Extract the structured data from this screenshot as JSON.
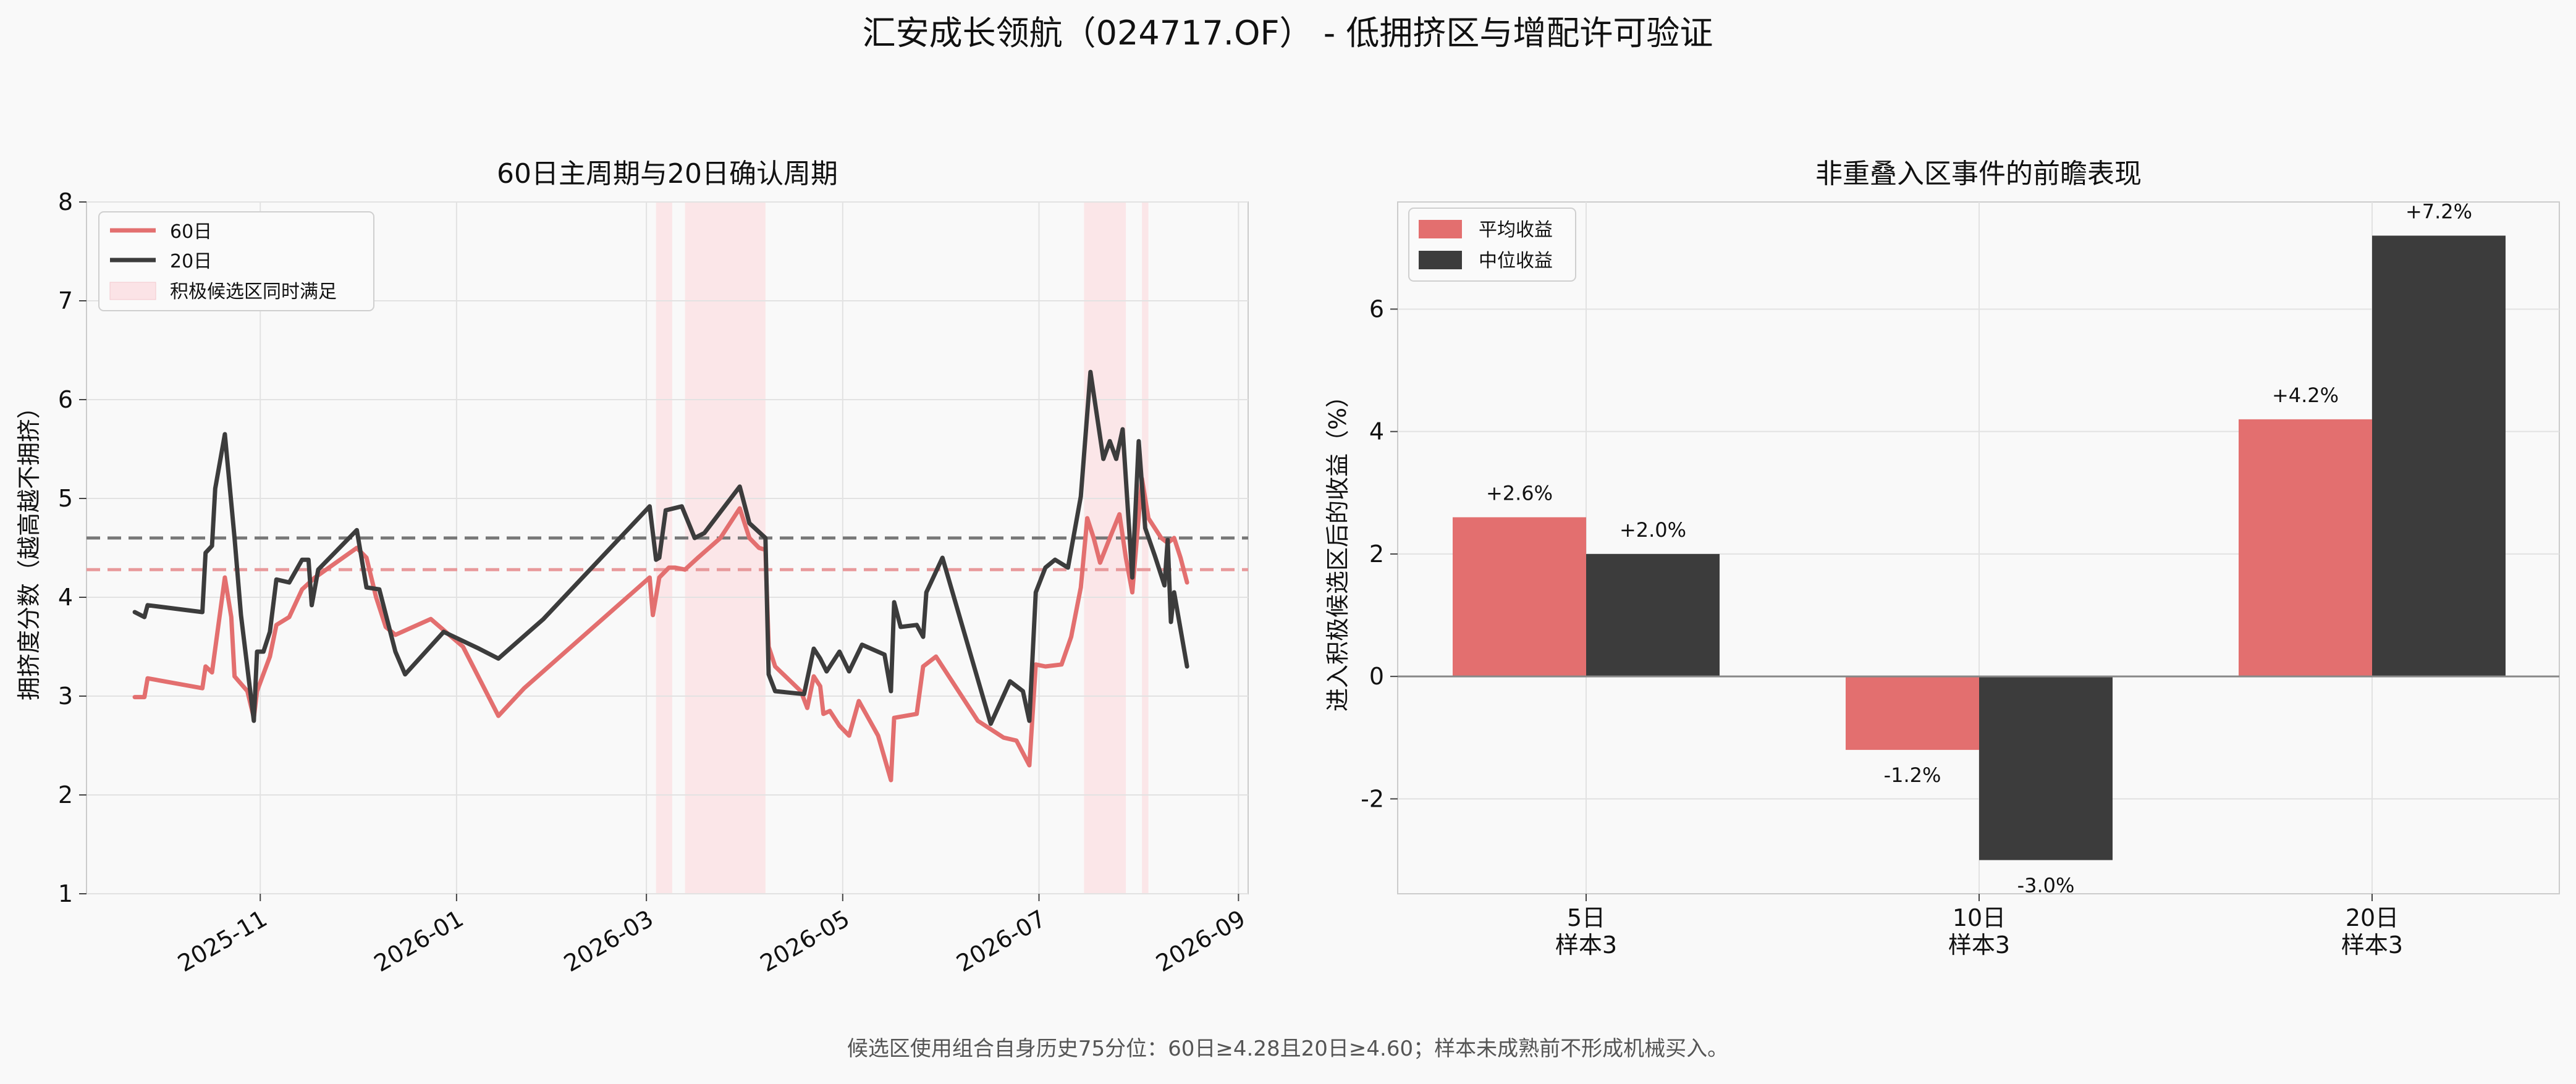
{
  "page": {
    "suptitle": "汇安成长领航（024717.OF） - 低拥挤区与增配许可验证",
    "footnote": "候选区使用组合自身历史75分位：60日≥4.28且20日≥4.60；样本未成熟前不形成机械买入。"
  },
  "colors": {
    "red": "#e36f6f",
    "dark": "#3c3c3c",
    "band": "#fbe3e6",
    "grid": "#e2e2e2",
    "axis": "#888888",
    "background": "#f9f9f9"
  },
  "chart_data": [
    {
      "type": "line",
      "title": "60日主周期与20日确认周期",
      "ylabel": "拥挤度分数（越高越不拥挤）",
      "xlabel": "",
      "x_is_date": true,
      "xlim": [
        "2025-09-08",
        "2026-09-04"
      ],
      "ylim": [
        1,
        8
      ],
      "yticks": [
        1,
        2,
        3,
        4,
        5,
        6,
        7,
        8
      ],
      "xticks": [
        "2025-11",
        "2026-01",
        "2026-03",
        "2026-05",
        "2026-07",
        "2026-09"
      ],
      "grid": true,
      "legend_position": "upper left",
      "legend": [
        "60日",
        "20日",
        "积极候选区同时满足"
      ],
      "thresholds": [
        {
          "series": "20日",
          "value": 4.6,
          "style": "dashed",
          "color": "#777777"
        },
        {
          "series": "60日",
          "value": 4.28,
          "style": "dashed",
          "color": "#e8999b"
        }
      ],
      "shaded_regions": [
        [
          "2026-03-04",
          "2026-03-09"
        ],
        [
          "2026-03-13",
          "2026-04-07"
        ],
        [
          "2026-07-15",
          "2026-07-28"
        ],
        [
          "2026-08-02",
          "2026-08-04"
        ]
      ],
      "series": [
        {
          "name": "60日",
          "color": "#e36f6f",
          "points": [
            [
              "2025-09-23",
              2.99
            ],
            [
              "2025-09-26",
              2.99
            ],
            [
              "2025-09-27",
              3.18
            ],
            [
              "2025-10-14",
              3.08
            ],
            [
              "2025-10-15",
              3.3
            ],
            [
              "2025-10-17",
              3.24
            ],
            [
              "2025-10-21",
              4.2
            ],
            [
              "2025-10-23",
              3.8
            ],
            [
              "2025-10-24",
              3.2
            ],
            [
              "2025-10-28",
              3.05
            ],
            [
              "2025-10-30",
              2.78
            ],
            [
              "2025-10-31",
              3.05
            ],
            [
              "2025-11-04",
              3.4
            ],
            [
              "2025-11-06",
              3.72
            ],
            [
              "2025-11-10",
              3.8
            ],
            [
              "2025-11-14",
              4.08
            ],
            [
              "2025-11-18",
              4.2
            ],
            [
              "2025-12-01",
              4.5
            ],
            [
              "2025-12-04",
              4.4
            ],
            [
              "2025-12-07",
              4.0
            ],
            [
              "2025-12-10",
              3.7
            ],
            [
              "2025-12-13",
              3.62
            ],
            [
              "2025-12-24",
              3.78
            ],
            [
              "2026-01-03",
              3.5
            ],
            [
              "2026-01-14",
              2.8
            ],
            [
              "2026-01-22",
              3.08
            ],
            [
              "2026-03-02",
              4.2
            ],
            [
              "2026-03-03",
              3.82
            ],
            [
              "2026-03-05",
              4.2
            ],
            [
              "2026-03-08",
              4.3
            ],
            [
              "2026-03-10",
              4.3
            ],
            [
              "2026-03-13",
              4.28
            ],
            [
              "2026-03-17",
              4.4
            ],
            [
              "2026-03-24",
              4.6
            ],
            [
              "2026-03-30",
              4.9
            ],
            [
              "2026-04-02",
              4.6
            ],
            [
              "2026-04-05",
              4.5
            ],
            [
              "2026-04-07",
              4.48
            ],
            [
              "2026-04-08",
              3.5
            ],
            [
              "2026-04-10",
              3.3
            ],
            [
              "2026-04-18",
              3.05
            ],
            [
              "2026-04-20",
              2.88
            ],
            [
              "2026-04-22",
              3.2
            ],
            [
              "2026-04-24",
              3.1
            ],
            [
              "2026-04-25",
              2.82
            ],
            [
              "2026-04-27",
              2.85
            ],
            [
              "2026-04-30",
              2.7
            ],
            [
              "2026-05-03",
              2.6
            ],
            [
              "2026-05-06",
              2.95
            ],
            [
              "2026-05-12",
              2.6
            ],
            [
              "2026-05-16",
              2.15
            ],
            [
              "2026-05-17",
              2.78
            ],
            [
              "2026-05-24",
              2.82
            ],
            [
              "2026-05-26",
              3.3
            ],
            [
              "2026-05-30",
              3.4
            ],
            [
              "2026-06-12",
              2.75
            ],
            [
              "2026-06-20",
              2.58
            ],
            [
              "2026-06-24",
              2.55
            ],
            [
              "2026-06-28",
              2.3
            ],
            [
              "2026-06-30",
              3.32
            ],
            [
              "2026-07-03",
              3.3
            ],
            [
              "2026-07-08",
              3.32
            ],
            [
              "2026-07-11",
              3.6
            ],
            [
              "2026-07-14",
              4.1
            ],
            [
              "2026-07-16",
              4.8
            ],
            [
              "2026-07-18",
              4.6
            ],
            [
              "2026-07-20",
              4.35
            ],
            [
              "2026-07-23",
              4.6
            ],
            [
              "2026-07-26",
              4.84
            ],
            [
              "2026-07-28",
              4.4
            ],
            [
              "2026-07-30",
              4.05
            ],
            [
              "2026-08-02",
              5.2
            ],
            [
              "2026-08-04",
              4.8
            ],
            [
              "2026-08-08",
              4.6
            ],
            [
              "2026-08-10",
              4.55
            ],
            [
              "2026-08-12",
              4.6
            ],
            [
              "2026-08-14",
              4.4
            ],
            [
              "2026-08-16",
              4.15
            ]
          ]
        },
        {
          "name": "20日",
          "color": "#3c3c3c",
          "points": [
            [
              "2025-09-23",
              3.85
            ],
            [
              "2025-09-26",
              3.8
            ],
            [
              "2025-09-27",
              3.92
            ],
            [
              "2025-10-14",
              3.85
            ],
            [
              "2025-10-15",
              4.45
            ],
            [
              "2025-10-17",
              4.52
            ],
            [
              "2025-10-18",
              5.1
            ],
            [
              "2025-10-21",
              5.65
            ],
            [
              "2025-10-24",
              4.6
            ],
            [
              "2025-10-26",
              3.82
            ],
            [
              "2025-10-30",
              2.75
            ],
            [
              "2025-10-31",
              3.45
            ],
            [
              "2025-11-02",
              3.45
            ],
            [
              "2025-11-04",
              3.65
            ],
            [
              "2025-11-06",
              4.18
            ],
            [
              "2025-11-10",
              4.15
            ],
            [
              "2025-11-14",
              4.38
            ],
            [
              "2025-11-16",
              4.38
            ],
            [
              "2025-11-17",
              3.92
            ],
            [
              "2025-11-19",
              4.28
            ],
            [
              "2025-12-01",
              4.68
            ],
            [
              "2025-12-04",
              4.1
            ],
            [
              "2025-12-08",
              4.08
            ],
            [
              "2025-12-13",
              3.45
            ],
            [
              "2025-12-16",
              3.22
            ],
            [
              "2025-12-28",
              3.65
            ],
            [
              "2026-01-08",
              3.48
            ],
            [
              "2026-01-14",
              3.38
            ],
            [
              "2026-01-28",
              3.78
            ],
            [
              "2026-03-02",
              4.92
            ],
            [
              "2026-03-04",
              4.38
            ],
            [
              "2026-03-05",
              4.4
            ],
            [
              "2026-03-07",
              4.88
            ],
            [
              "2026-03-12",
              4.92
            ],
            [
              "2026-03-16",
              4.6
            ],
            [
              "2026-03-19",
              4.65
            ],
            [
              "2026-03-30",
              5.12
            ],
            [
              "2026-04-02",
              4.75
            ],
            [
              "2026-04-07",
              4.6
            ],
            [
              "2026-04-08",
              3.22
            ],
            [
              "2026-04-10",
              3.05
            ],
            [
              "2026-04-19",
              3.02
            ],
            [
              "2026-04-22",
              3.48
            ],
            [
              "2026-04-24",
              3.38
            ],
            [
              "2026-04-26",
              3.25
            ],
            [
              "2026-04-30",
              3.45
            ],
            [
              "2026-05-03",
              3.25
            ],
            [
              "2026-05-07",
              3.52
            ],
            [
              "2026-05-14",
              3.42
            ],
            [
              "2026-05-16",
              3.05
            ],
            [
              "2026-05-17",
              3.95
            ],
            [
              "2026-05-19",
              3.7
            ],
            [
              "2026-05-24",
              3.72
            ],
            [
              "2026-05-26",
              3.6
            ],
            [
              "2026-05-27",
              4.05
            ],
            [
              "2026-06-01",
              4.4
            ],
            [
              "2026-06-16",
              2.72
            ],
            [
              "2026-06-22",
              3.15
            ],
            [
              "2026-06-26",
              3.05
            ],
            [
              "2026-06-28",
              2.75
            ],
            [
              "2026-06-30",
              4.05
            ],
            [
              "2026-07-03",
              4.3
            ],
            [
              "2026-07-06",
              4.38
            ],
            [
              "2026-07-10",
              4.3
            ],
            [
              "2026-07-14",
              5.02
            ],
            [
              "2026-07-17",
              6.28
            ],
            [
              "2026-07-21",
              5.4
            ],
            [
              "2026-07-23",
              5.58
            ],
            [
              "2026-07-25",
              5.4
            ],
            [
              "2026-07-27",
              5.7
            ],
            [
              "2026-07-30",
              4.2
            ],
            [
              "2026-08-01",
              5.58
            ],
            [
              "2026-08-03",
              4.7
            ],
            [
              "2026-08-06",
              4.42
            ],
            [
              "2026-08-09",
              4.12
            ],
            [
              "2026-08-10",
              4.58
            ],
            [
              "2026-08-11",
              3.75
            ],
            [
              "2026-08-12",
              4.05
            ],
            [
              "2026-08-16",
              3.3
            ]
          ]
        }
      ]
    },
    {
      "type": "bar",
      "title": "非重叠入区事件的前瞻表现",
      "ylabel": "进入积极候选区后的收益（%）",
      "xlabel": "",
      "categories": [
        "5日",
        "10日",
        "20日"
      ],
      "category_sublabels": [
        "样本3",
        "样本3",
        "样本3"
      ],
      "ylim": [
        -3.55,
        7.75
      ],
      "yticks": [
        -2,
        0,
        2,
        4,
        6
      ],
      "grid": true,
      "legend_position": "upper left",
      "series": [
        {
          "name": "平均收益",
          "color": "#e36f6f",
          "values": [
            2.6,
            -1.2,
            4.2
          ]
        },
        {
          "name": "中位收益",
          "color": "#3c3c3c",
          "values": [
            2.0,
            -3.0,
            7.2
          ]
        }
      ],
      "value_labels": [
        [
          "+2.6%",
          "-1.2%",
          "+4.2%"
        ],
        [
          "+2.0%",
          "-3.0%",
          "+7.2%"
        ]
      ]
    }
  ]
}
